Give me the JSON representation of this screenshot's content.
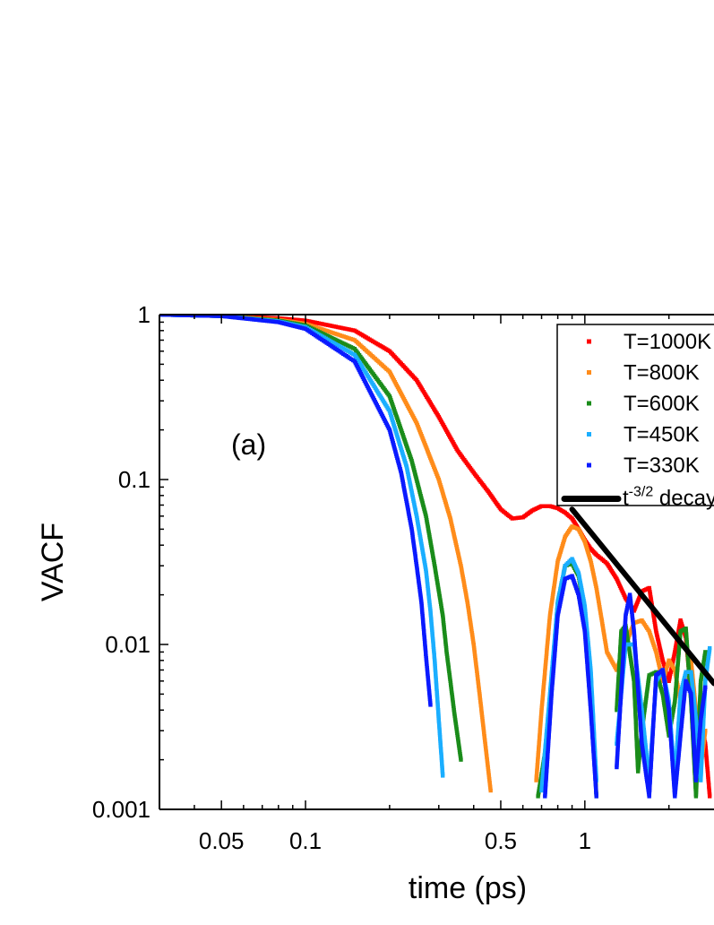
{
  "chart_data": {
    "type": "scatter",
    "title": "",
    "xlabel": "time (ps)",
    "ylabel": "VACF",
    "x_scale": "log",
    "y_scale": "log",
    "xlim": [
      0.03,
      2.9
    ],
    "ylim": [
      0.001,
      1
    ],
    "x_ticks": [
      {
        "value": 0.05,
        "label": "0.05"
      },
      {
        "value": 0.1,
        "label": "0.1"
      },
      {
        "value": 0.5,
        "label": "0.5"
      },
      {
        "value": 1,
        "label": "1"
      }
    ],
    "y_ticks": [
      {
        "value": 1,
        "label": "1"
      },
      {
        "value": 0.1,
        "label": "0.1"
      },
      {
        "value": 0.01,
        "label": "0.01"
      },
      {
        "value": 0.001,
        "label": "0.001"
      }
    ],
    "annotation": "(a)",
    "legend_position": "top-right",
    "series": [
      {
        "name": "T=1000K",
        "color": "#ff0000",
        "style": "markers",
        "x": [
          0.03,
          0.05,
          0.08,
          0.1,
          0.15,
          0.2,
          0.25,
          0.3,
          0.35,
          0.4,
          0.45,
          0.5,
          0.55,
          0.6,
          0.65,
          0.7,
          0.75,
          0.8,
          0.85,
          0.9,
          0.95,
          1.0,
          1.05,
          1.1,
          1.2,
          1.3,
          1.4,
          1.5,
          1.6,
          1.7,
          1.8,
          1.9,
          2.0,
          2.1,
          2.2,
          2.3,
          2.4,
          2.5,
          2.6,
          2.7,
          2.8
        ],
        "y": [
          1.0,
          0.985,
          0.95,
          0.92,
          0.8,
          0.6,
          0.4,
          0.24,
          0.15,
          0.11,
          0.085,
          0.066,
          0.058,
          0.059,
          0.065,
          0.069,
          0.069,
          0.067,
          0.063,
          0.058,
          0.05,
          0.043,
          0.038,
          0.035,
          0.031,
          0.025,
          0.019,
          0.016,
          0.021,
          0.022,
          0.012,
          0.008,
          0.006,
          0.009,
          0.014,
          0.011,
          0.005,
          0.003,
          0.0035,
          0.0025,
          0.0012
        ]
      },
      {
        "name": "T=800K",
        "color": "#ff8c1a",
        "style": "markers",
        "x": [
          0.03,
          0.05,
          0.08,
          0.1,
          0.15,
          0.2,
          0.25,
          0.3,
          0.33,
          0.36,
          0.38,
          0.4,
          0.42,
          0.44,
          0.46,
          0.5,
          0.55,
          0.6,
          0.64,
          0.67,
          0.7,
          0.75,
          0.8,
          0.85,
          0.9,
          0.95,
          1.0,
          1.05,
          1.1,
          1.15,
          1.2,
          1.3,
          1.4,
          1.5,
          1.6,
          1.7,
          1.8,
          1.9,
          2.0,
          2.1,
          2.2,
          2.3,
          2.4,
          2.5,
          2.6,
          2.7
        ],
        "y": [
          1.0,
          0.98,
          0.93,
          0.88,
          0.7,
          0.45,
          0.22,
          0.1,
          0.058,
          0.03,
          0.018,
          0.01,
          0.005,
          0.0025,
          0.0013,
          null,
          null,
          null,
          null,
          0.0015,
          0.004,
          0.015,
          0.032,
          0.045,
          0.052,
          0.05,
          0.042,
          0.032,
          0.022,
          0.014,
          0.009,
          0.007,
          0.01,
          0.0135,
          0.014,
          0.012,
          0.009,
          0.006,
          0.008,
          0.007,
          0.0045,
          0.006,
          0.008,
          0.004,
          0.0018,
          0.003
        ]
      },
      {
        "name": "T=600K",
        "color": "#1a8c1a",
        "style": "markers",
        "x": [
          0.03,
          0.05,
          0.08,
          0.1,
          0.15,
          0.2,
          0.24,
          0.27,
          0.29,
          0.31,
          0.32,
          0.33,
          0.34,
          0.36,
          0.6,
          0.68,
          0.72,
          0.76,
          0.8,
          0.85,
          0.9,
          0.95,
          1.0,
          1.05,
          1.1,
          1.2,
          1.3,
          1.35,
          1.4,
          1.5,
          1.55,
          1.6,
          1.7,
          1.8,
          1.9,
          2.0,
          2.1,
          2.2,
          2.3,
          2.4,
          2.5,
          2.6,
          2.7
        ],
        "y": [
          1.0,
          0.98,
          0.92,
          0.86,
          0.62,
          0.32,
          0.13,
          0.06,
          0.03,
          0.015,
          0.009,
          0.006,
          0.004,
          0.002,
          null,
          0.0012,
          0.0022,
          0.006,
          0.018,
          0.03,
          0.031,
          0.026,
          0.016,
          0.006,
          0.0012,
          null,
          0.004,
          0.012,
          0.013,
          0.006,
          0.0017,
          0.003,
          0.0065,
          0.0068,
          0.005,
          0.0028,
          0.0045,
          0.012,
          0.0125,
          0.0045,
          0.0012,
          0.006,
          0.009
        ]
      },
      {
        "name": "T=450K",
        "color": "#1aaeff",
        "style": "markers",
        "x": [
          0.03,
          0.05,
          0.08,
          0.1,
          0.15,
          0.2,
          0.23,
          0.25,
          0.27,
          0.28,
          0.29,
          0.3,
          0.31,
          0.6,
          0.7,
          0.75,
          0.8,
          0.85,
          0.9,
          0.95,
          1.0,
          1.05,
          1.1,
          1.2,
          1.3,
          1.4,
          1.5,
          1.6,
          1.7,
          1.8,
          1.9,
          2.0,
          2.1,
          2.2,
          2.3,
          2.4,
          2.5,
          2.6,
          2.7,
          2.8
        ],
        "y": [
          1.0,
          0.98,
          0.91,
          0.84,
          0.57,
          0.26,
          0.12,
          0.06,
          0.028,
          0.016,
          0.008,
          0.0035,
          0.0016,
          null,
          0.0013,
          0.005,
          0.018,
          0.03,
          0.033,
          0.027,
          0.017,
          0.007,
          0.0015,
          null,
          0.0025,
          0.01,
          0.01,
          0.004,
          0.0015,
          0.006,
          0.007,
          0.0045,
          0.0015,
          0.005,
          0.0068,
          0.0068,
          0.0035,
          0.0015,
          0.006,
          0.0095
        ]
      },
      {
        "name": "T=330K",
        "color": "#0a1aff",
        "style": "markers",
        "x": [
          0.03,
          0.05,
          0.08,
          0.1,
          0.15,
          0.2,
          0.22,
          0.24,
          0.25,
          0.26,
          0.27,
          0.28,
          0.6,
          0.72,
          0.76,
          0.8,
          0.85,
          0.9,
          0.95,
          1.0,
          1.05,
          1.1,
          1.2,
          1.3,
          1.4,
          1.45,
          1.5,
          1.6,
          1.7,
          1.8,
          1.9,
          2.0,
          2.1,
          2.2,
          2.3,
          2.4,
          2.5,
          2.6,
          2.7
        ],
        "y": [
          1.0,
          0.98,
          0.9,
          0.82,
          0.52,
          0.2,
          0.11,
          0.05,
          0.03,
          0.018,
          0.0085,
          0.0043,
          null,
          0.0012,
          0.005,
          0.015,
          0.025,
          0.026,
          0.02,
          0.012,
          0.004,
          0.0012,
          null,
          0.0018,
          0.015,
          0.02,
          0.012,
          0.0025,
          0.0012,
          0.0065,
          0.007,
          0.004,
          0.0012,
          0.0028,
          0.006,
          0.005,
          0.0015,
          0.0035,
          0.0055
        ]
      },
      {
        "name": "t^-3/2 decay",
        "legend_label": "t",
        "legend_superscript": "-3/2",
        "legend_suffix": " decay",
        "color": "#000000",
        "style": "line",
        "x": [
          0.9,
          2.9
        ],
        "y": [
          0.066,
          0.0058
        ]
      }
    ]
  }
}
